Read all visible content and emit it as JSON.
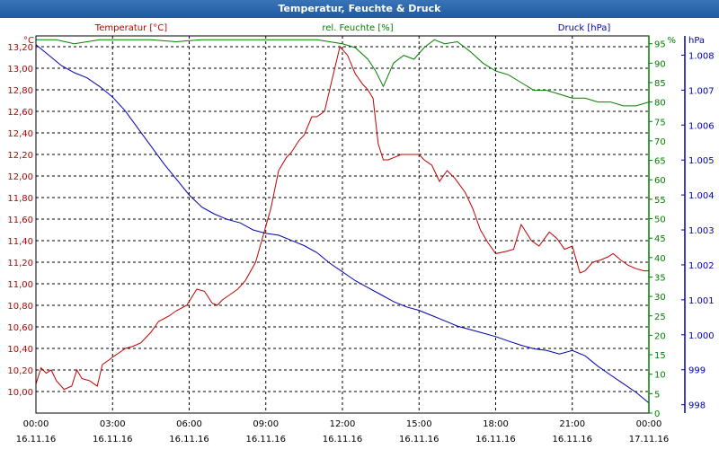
{
  "window": {
    "title": "Temperatur, Feuchte & Druck"
  },
  "chart_data": {
    "type": "line",
    "title": "Temperatur, Feuchte & Druck",
    "colors": {
      "temperature": "#c00000",
      "humidity": "#008000",
      "pressure": "#0000b0"
    },
    "axes": {
      "temperature": {
        "label": "Temperatur [°C]",
        "unit": "°C",
        "ylim": [
          9.8,
          13.3
        ],
        "ticks": [
          "10,00",
          "10,20",
          "10,40",
          "10,60",
          "10,80",
          "11,00",
          "11,20",
          "11,40",
          "11,60",
          "11,80",
          "12,00",
          "12,20",
          "12,40",
          "12,60",
          "12,80",
          "13,00",
          "13,20"
        ]
      },
      "humidity": {
        "label": "rel. Feuchte [%]",
        "unit": "%",
        "ylim": [
          0,
          97
        ],
        "ticks": [
          "0",
          "5",
          "10",
          "15",
          "20",
          "25",
          "30",
          "35",
          "40",
          "45",
          "50",
          "55",
          "60",
          "65",
          "70",
          "75",
          "80",
          "85",
          "90",
          "95"
        ]
      },
      "pressure": {
        "label": "Druck [hPa]",
        "unit": "hPa",
        "ylim": [
          997.76,
          1008.55
        ],
        "ticks": [
          "998",
          "999",
          "1.000",
          "1.001",
          "1.002",
          "1.003",
          "1.004",
          "1.005",
          "1.006",
          "1.007",
          "1.008"
        ]
      }
    },
    "x_ticks": [
      {
        "time": "00:00",
        "date": "16.11.16"
      },
      {
        "time": "03:00",
        "date": "16.11.16"
      },
      {
        "time": "06:00",
        "date": "16.11.16"
      },
      {
        "time": "09:00",
        "date": "16.11.16"
      },
      {
        "time": "12:00",
        "date": "16.11.16"
      },
      {
        "time": "15:00",
        "date": "16.11.16"
      },
      {
        "time": "18:00",
        "date": "16.11.16"
      },
      {
        "time": "21:00",
        "date": "16.11.16"
      },
      {
        "time": "00:00",
        "date": "17.11.16"
      }
    ],
    "xlim": [
      0,
      24
    ],
    "series": [
      {
        "name": "Temperatur",
        "axis": "temperature",
        "x": [
          0,
          0.2,
          0.4,
          0.6,
          0.8,
          1.1,
          1.4,
          1.6,
          1.8,
          2.1,
          2.4,
          2.6,
          2.9,
          3,
          3.2,
          3.5,
          3.8,
          4.1,
          4.5,
          4.8,
          5.2,
          5.5,
          5.9,
          6.3,
          6.6,
          6.9,
          7.1,
          7.3,
          7.6,
          7.9,
          8.2,
          8.6,
          8.9,
          9.2,
          9.5,
          9.8,
          10,
          10.3,
          10.5,
          10.8,
          11,
          11.3,
          11.6,
          11.9,
          12.2,
          12.5,
          12.8,
          13,
          13.2,
          13.4,
          13.6,
          13.8,
          14.1,
          14.3,
          14.6,
          15,
          15.2,
          15.5,
          15.8,
          16.1,
          16.4,
          16.8,
          17.1,
          17.4,
          17.7,
          18,
          18.4,
          18.7,
          19,
          19.4,
          19.7,
          20.1,
          20.4,
          20.7,
          21,
          21.3,
          21.5,
          21.8,
          22.1,
          22.4,
          22.6,
          22.9,
          23.2,
          23.5,
          23.8,
          24
        ],
        "values": [
          10.07,
          10.22,
          10.17,
          10.2,
          10.1,
          10.02,
          10.05,
          10.2,
          10.12,
          10.1,
          10.05,
          10.25,
          10.3,
          10.32,
          10.35,
          10.4,
          10.42,
          10.45,
          10.55,
          10.65,
          10.7,
          10.75,
          10.8,
          10.95,
          10.93,
          10.82,
          10.8,
          10.85,
          10.9,
          10.95,
          11.03,
          11.2,
          11.45,
          11.7,
          12.05,
          12.17,
          12.22,
          12.33,
          12.38,
          12.55,
          12.55,
          12.6,
          12.9,
          13.2,
          13.12,
          12.95,
          12.85,
          12.8,
          12.72,
          12.3,
          12.15,
          12.15,
          12.18,
          12.2,
          12.2,
          12.2,
          12.15,
          12.1,
          11.95,
          12.05,
          11.98,
          11.85,
          11.7,
          11.5,
          11.38,
          11.28,
          11.3,
          11.32,
          11.55,
          11.4,
          11.35,
          11.48,
          11.42,
          11.32,
          11.35,
          11.1,
          11.12,
          11.2,
          11.22,
          11.25,
          11.28,
          11.22,
          11.17,
          11.14,
          11.12,
          11.12
        ]
      },
      {
        "name": "rel. Feuchte",
        "axis": "humidity",
        "x": [
          0,
          0.8,
          1.5,
          2.5,
          3.5,
          4.5,
          5.5,
          6,
          6.5,
          7,
          7.5,
          8,
          9,
          10,
          11,
          12,
          12.5,
          13,
          13.3,
          13.6,
          14,
          14.4,
          14.8,
          15.2,
          15.6,
          16,
          16.5,
          17,
          17.5,
          18,
          18.5,
          19,
          19.5,
          20,
          20.5,
          21,
          21.5,
          22,
          22.5,
          23,
          23.5,
          24
        ],
        "values": [
          96,
          96,
          95,
          96,
          96,
          96,
          95.5,
          95.8,
          96,
          96,
          96,
          96,
          96,
          96,
          96,
          95,
          94,
          91,
          88,
          84,
          90,
          92,
          91,
          94,
          96,
          95,
          95.5,
          93,
          90,
          88,
          87,
          85,
          83,
          83,
          82,
          81,
          81,
          80,
          80,
          79,
          79,
          80
        ]
      },
      {
        "name": "Druck",
        "axis": "pressure",
        "x": [
          0,
          0.5,
          1,
          1.5,
          2,
          2.5,
          3,
          3.5,
          4,
          4.5,
          5,
          5.5,
          6,
          6.5,
          7,
          7.5,
          8,
          8.5,
          9,
          9.5,
          10,
          10.5,
          11,
          11.5,
          12,
          12.5,
          13,
          13.5,
          14,
          14.5,
          15,
          15.5,
          16,
          16.5,
          17,
          17.5,
          18,
          18.5,
          19,
          19.5,
          20,
          20.5,
          21,
          21.5,
          22,
          22.5,
          23,
          23.5,
          24
        ],
        "values": [
          1008.3,
          1008.0,
          1007.7,
          1007.5,
          1007.35,
          1007.1,
          1006.8,
          1006.4,
          1005.9,
          1005.4,
          1004.9,
          1004.45,
          1004.0,
          1003.65,
          1003.45,
          1003.3,
          1003.2,
          1003.0,
          1002.9,
          1002.85,
          1002.7,
          1002.55,
          1002.35,
          1002.05,
          1001.8,
          1001.55,
          1001.35,
          1001.15,
          1000.95,
          1000.8,
          1000.7,
          1000.55,
          1000.4,
          1000.25,
          1000.15,
          1000.05,
          999.95,
          999.82,
          999.7,
          999.6,
          999.55,
          999.45,
          999.55,
          999.4,
          999.1,
          998.85,
          998.6,
          998.35,
          998.05
        ]
      }
    ]
  }
}
